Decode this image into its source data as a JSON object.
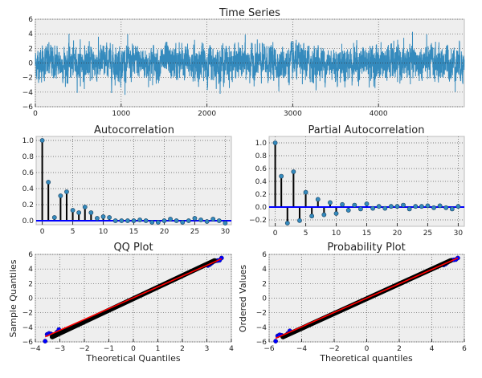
{
  "chart_data": [
    {
      "type": "line",
      "title": "Time Series",
      "xlim": [
        0,
        5000
      ],
      "ylim": [
        -6,
        6
      ],
      "xticks": [
        "0",
        "1000",
        "2000",
        "3000",
        "4000"
      ],
      "yticks": [
        "−6",
        "−4",
        "−2",
        "0",
        "2",
        "4",
        "6"
      ],
      "grid": true,
      "color": "#348abd"
    },
    {
      "type": "stem",
      "title": "Autocorrelation",
      "x": [
        0,
        1,
        2,
        3,
        4,
        5,
        6,
        7,
        8,
        9,
        10,
        11,
        12,
        13,
        14,
        15,
        16,
        17,
        18,
        19,
        20,
        21,
        22,
        23,
        24,
        25,
        26,
        27,
        28,
        29,
        30
      ],
      "values": [
        1.0,
        0.48,
        0.04,
        0.31,
        0.36,
        0.13,
        0.1,
        0.17,
        0.1,
        0.03,
        0.05,
        0.04,
        0.0,
        0.0,
        0.0,
        0.0,
        0.01,
        0.0,
        -0.02,
        -0.02,
        0.0,
        0.02,
        0.0,
        -0.02,
        0.0,
        0.03,
        0.01,
        -0.01,
        0.02,
        0.0,
        -0.03
      ],
      "xlim": [
        -1,
        31
      ],
      "ylim": [
        -0.05,
        1.05
      ],
      "xticks": [
        "0",
        "5",
        "10",
        "15",
        "20",
        "25",
        "30"
      ],
      "yticks": [
        "0.0",
        "0.2",
        "0.4",
        "0.6",
        "0.8",
        "1.0"
      ],
      "grid": true
    },
    {
      "type": "stem",
      "title": "Partial Autocorrelation",
      "x": [
        0,
        1,
        2,
        3,
        4,
        5,
        6,
        7,
        8,
        9,
        10,
        11,
        12,
        13,
        14,
        15,
        16,
        17,
        18,
        19,
        20,
        21,
        22,
        23,
        24,
        25,
        26,
        27,
        28,
        29,
        30
      ],
      "values": [
        1.0,
        0.48,
        -0.25,
        0.55,
        -0.21,
        0.23,
        -0.14,
        0.12,
        -0.12,
        0.07,
        -0.1,
        0.04,
        -0.05,
        0.03,
        -0.03,
        0.05,
        -0.02,
        0.01,
        -0.02,
        0.01,
        0.01,
        0.03,
        -0.03,
        0.01,
        0.01,
        0.02,
        -0.01,
        0.02,
        -0.01,
        -0.03,
        0.01
      ],
      "xlim": [
        -1,
        31
      ],
      "ylim": [
        -0.3,
        1.1
      ],
      "xticks": [
        "0",
        "5",
        "10",
        "15",
        "20",
        "25",
        "30"
      ],
      "yticks": [
        "−0.2",
        "0.0",
        "0.2",
        "0.4",
        "0.6",
        "0.8",
        "1.0"
      ],
      "grid": true
    },
    {
      "type": "scatter",
      "title": "QQ Plot",
      "xlabel": "Theoretical Quantiles",
      "ylabel": "Sample Quantiles",
      "xlim": [
        -4,
        4
      ],
      "ylim": [
        -6,
        6
      ],
      "xticks": [
        "−4",
        "−3",
        "−2",
        "−1",
        "0",
        "1",
        "2",
        "3",
        "4"
      ],
      "yticks": [
        "−6",
        "−4",
        "−2",
        "0",
        "2",
        "4",
        "6"
      ],
      "x_range": [
        -3.6,
        3.6
      ],
      "y_range": [
        -5.9,
        5.6
      ],
      "fit_line": [
        [
          -3.6,
          -5.3
        ],
        [
          3.6,
          5.4
        ]
      ],
      "grid": true
    },
    {
      "type": "scatter",
      "title": "Probability Plot",
      "xlabel": "Theoretical quantiles",
      "ylabel": "Ordered Values",
      "xlim": [
        -6,
        6
      ],
      "ylim": [
        -6,
        6
      ],
      "xticks": [
        "−6",
        "−4",
        "−2",
        "0",
        "2",
        "4",
        "6"
      ],
      "yticks": [
        "−6",
        "−4",
        "−2",
        "0",
        "2",
        "4",
        "6"
      ],
      "x_range": [
        -5.6,
        5.6
      ],
      "y_range": [
        -5.9,
        5.6
      ],
      "fit_line": [
        [
          -5.6,
          -5.5
        ],
        [
          5.6,
          5.5
        ]
      ],
      "grid": true
    }
  ]
}
